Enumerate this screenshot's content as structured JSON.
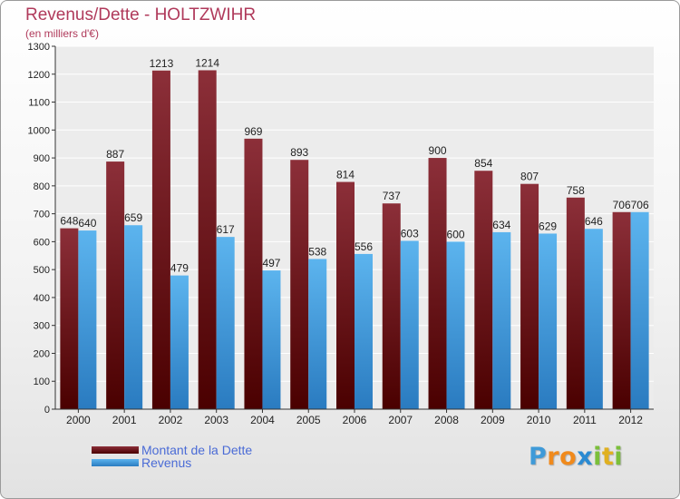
{
  "header": {
    "title": "Revenus/Dette - HOLTZWIHR",
    "subtitle": "(en milliers d'€)"
  },
  "legend": {
    "items": [
      {
        "label": "Montant de la Dette",
        "color": "#6b0f12"
      },
      {
        "label": "Revenus",
        "color": "#4fa8e8"
      }
    ]
  },
  "logo": {
    "text": "Proxiti",
    "letters": [
      {
        "ch": "P",
        "color": "#3f9ad8"
      },
      {
        "ch": "r",
        "color": "#f08a1c"
      },
      {
        "ch": "o",
        "color": "#f08a1c"
      },
      {
        "ch": "x",
        "color": "#2a8ad2"
      },
      {
        "ch": "i",
        "color": "#7bbf3a"
      },
      {
        "ch": "t",
        "color": "#e0b020"
      },
      {
        "ch": "i",
        "color": "#7bbf3a"
      }
    ]
  },
  "chart_data": {
    "type": "bar",
    "title": "Revenus/Dette - HOLTZWIHR",
    "subtitle": "(en milliers d'€)",
    "categories": [
      "2000",
      "2001",
      "2002",
      "2003",
      "2004",
      "2005",
      "2006",
      "2007",
      "2008",
      "2009",
      "2010",
      "2011",
      "2012"
    ],
    "series": [
      {
        "name": "Montant de la Dette",
        "color": "#6b0f12",
        "values": [
          648,
          887,
          1213,
          1214,
          969,
          893,
          814,
          737,
          900,
          854,
          807,
          758,
          706
        ]
      },
      {
        "name": "Revenus",
        "color": "#4fa8e8",
        "values": [
          640,
          659,
          479,
          617,
          497,
          538,
          556,
          603,
          600,
          634,
          629,
          646,
          706
        ]
      }
    ],
    "ylim": [
      0,
      1300
    ],
    "yticks": [
      0,
      100,
      200,
      300,
      400,
      500,
      600,
      700,
      800,
      900,
      1000,
      1100,
      1200,
      1300
    ],
    "grid": true,
    "legend_position": "bottom-left"
  }
}
